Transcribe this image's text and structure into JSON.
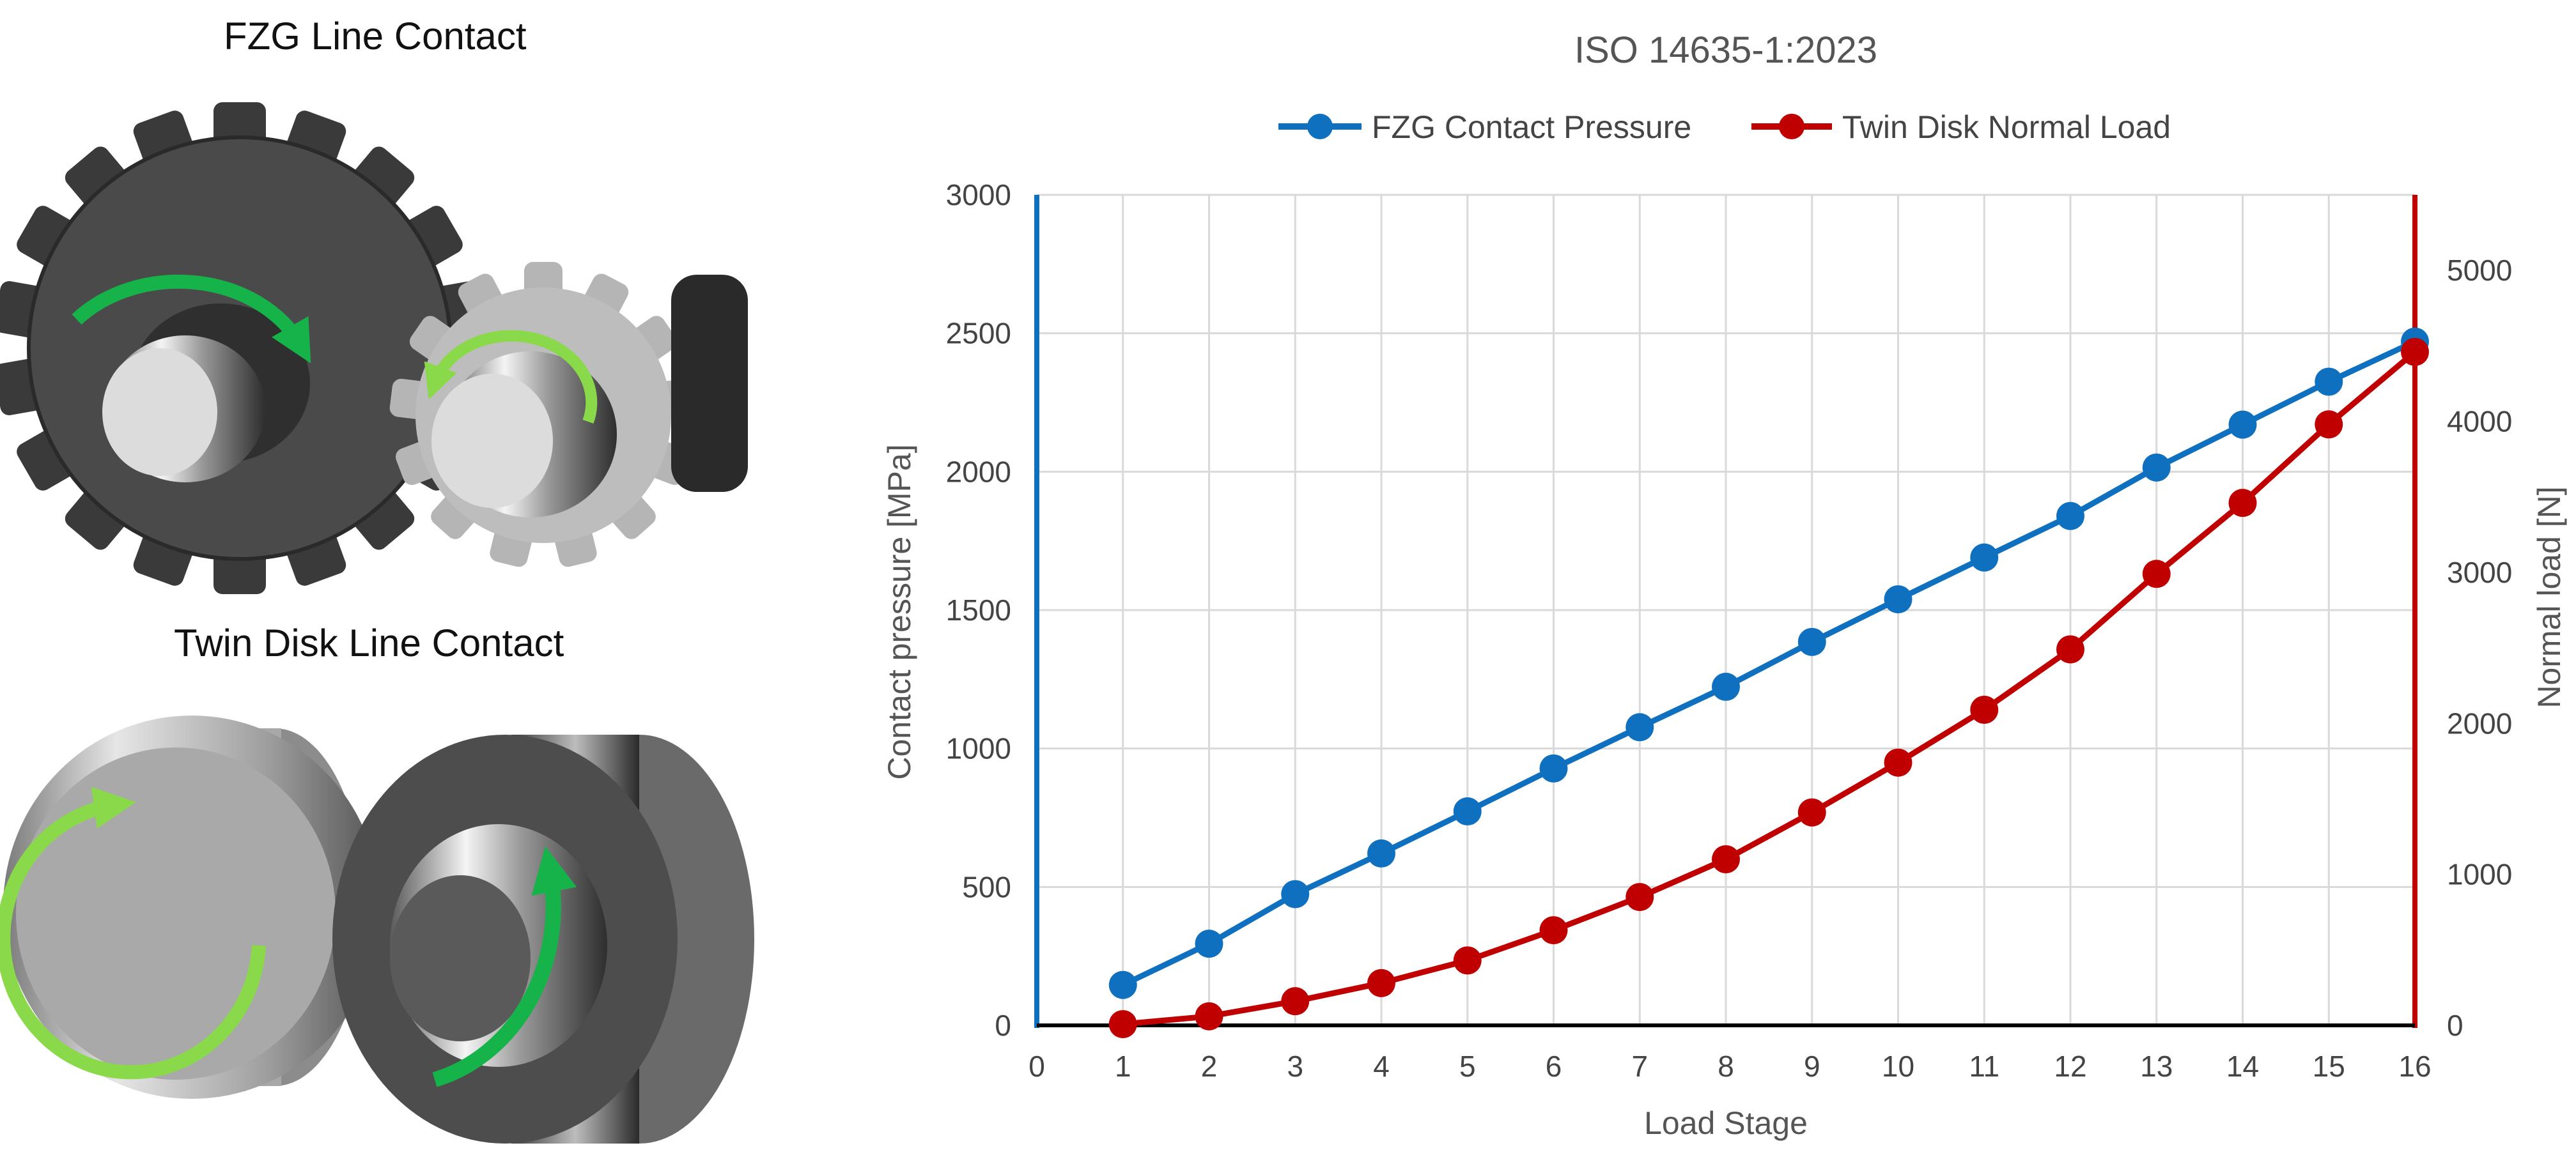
{
  "left_panel": {
    "fzg_caption": "FZG Line Contact",
    "twin_disk_caption": "Twin Disk Line Contact"
  },
  "colors": {
    "fzg_series": "#1070c0",
    "twin_disk_series": "#c00000",
    "gridline": "#d9d9d9",
    "x_axis": "#000000",
    "arrow_green": "#16b34a",
    "arrow_light_green": "#8ad94a"
  },
  "chart_data": {
    "type": "line",
    "title": "ISO 14635-1:2023",
    "xlabel": "Load Stage",
    "ylabel": "Contact pressure [MPa]",
    "y2label": "Normal load [N]",
    "xlim": [
      0,
      16
    ],
    "ylim": [
      0,
      3000
    ],
    "y2lim": [
      0,
      5500
    ],
    "x_ticks": [
      "0",
      "1",
      "2",
      "3",
      "4",
      "5",
      "6",
      "7",
      "8",
      "9",
      "10",
      "11",
      "12",
      "13",
      "14",
      "15",
      "16"
    ],
    "y_ticks": [
      "0",
      "500",
      "1000",
      "1500",
      "2000",
      "2500",
      "3000"
    ],
    "y2_ticks": [
      "0",
      "1000",
      "2000",
      "3000",
      "4000",
      "5000"
    ],
    "grid": true,
    "legend_position": "top",
    "x": [
      1,
      2,
      3,
      4,
      5,
      6,
      7,
      8,
      9,
      10,
      11,
      12,
      13,
      14,
      15,
      16
    ],
    "series": [
      {
        "name": "FZG Contact Pressure",
        "axis": "left",
        "values": [
          146,
          295,
          474,
          621,
          773,
          928,
          1077,
          1223,
          1385,
          1539,
          1690,
          1840,
          2015,
          2170,
          2325,
          2470
        ]
      },
      {
        "name": "Twin Disk Normal Load",
        "axis": "right",
        "values": [
          8,
          60,
          160,
          280,
          430,
          630,
          850,
          1100,
          1410,
          1740,
          2090,
          2490,
          2990,
          3460,
          3980,
          4460
        ]
      }
    ]
  }
}
